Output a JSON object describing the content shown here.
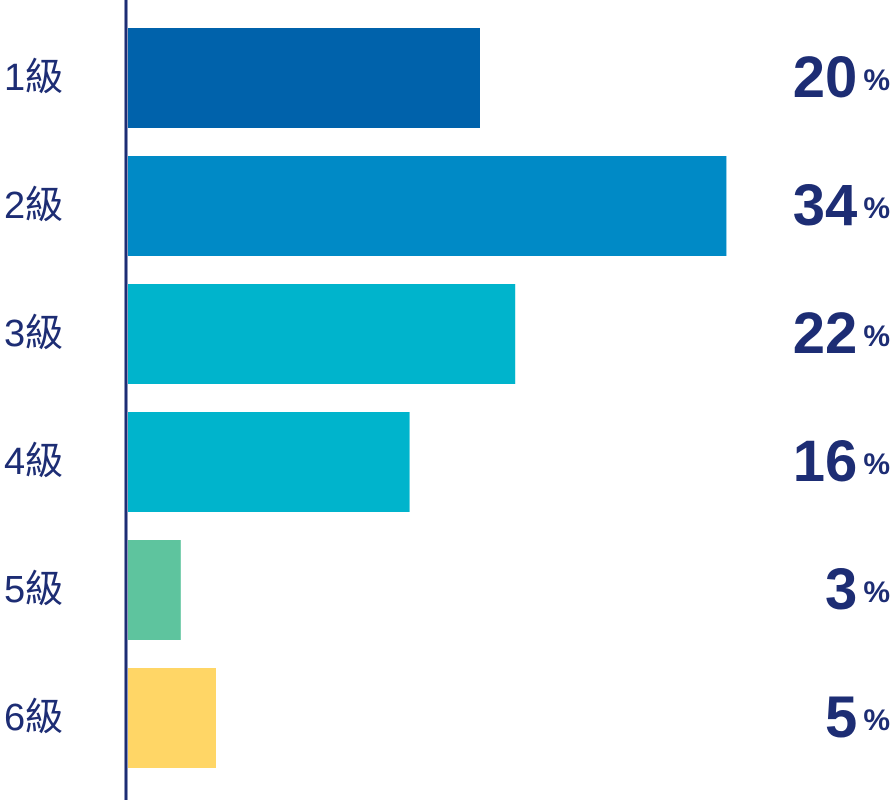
{
  "chart_data": {
    "type": "bar",
    "orientation": "horizontal",
    "categories": [
      "1級",
      "2級",
      "3級",
      "4級",
      "5級",
      "6級"
    ],
    "values": [
      20,
      34,
      22,
      16,
      3,
      5
    ],
    "value_labels": [
      "20%",
      "34%",
      "22%",
      "16%",
      "3%",
      "5%"
    ],
    "colors": [
      "#0062ab",
      "#008ac6",
      "#00b4cc",
      "#00b4cc",
      "#5ec49e",
      "#ffd666"
    ]
  }
}
